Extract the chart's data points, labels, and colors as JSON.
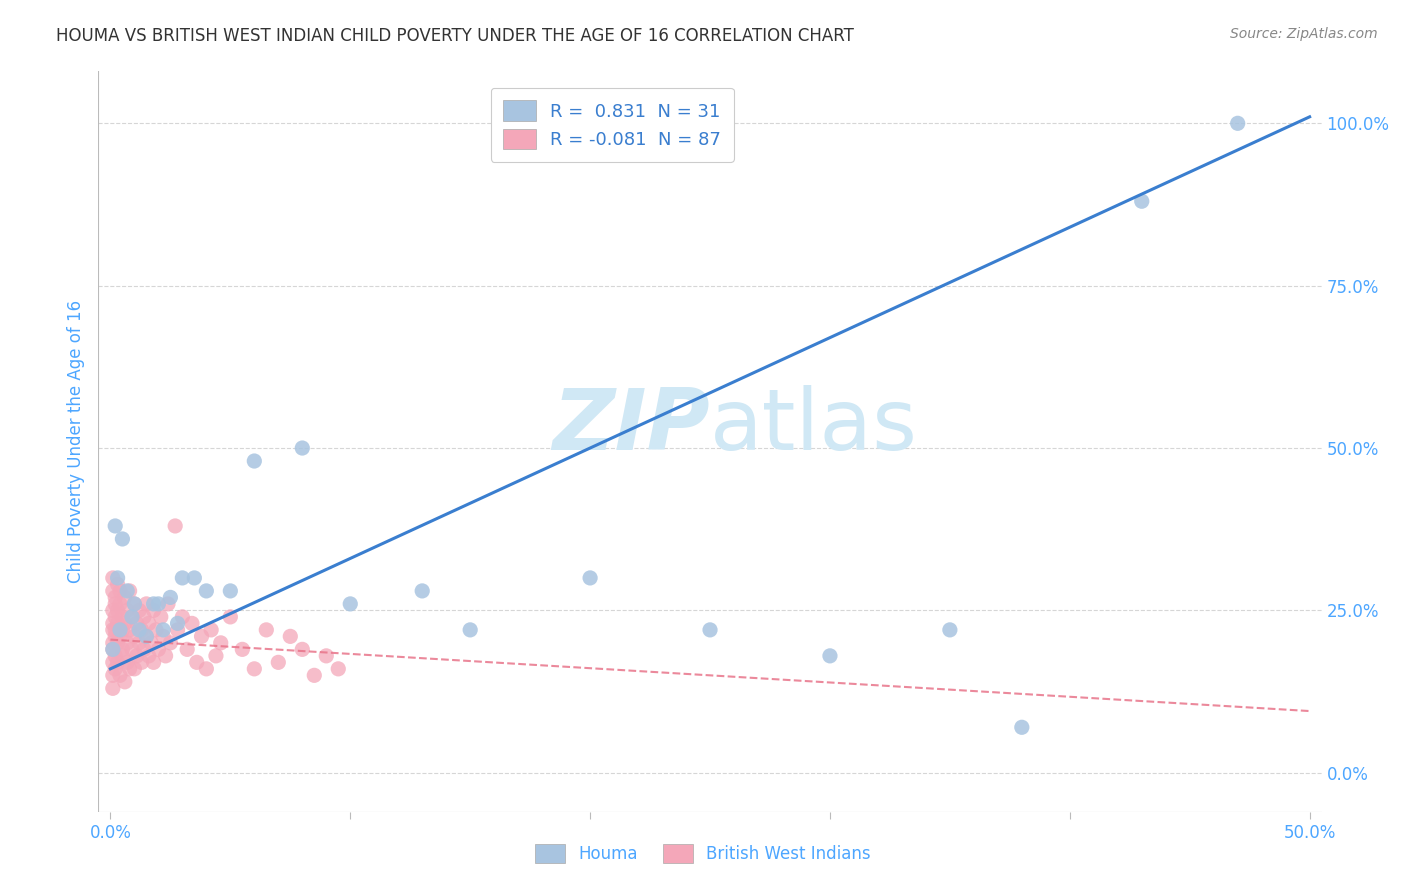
{
  "title": "HOUMA VS BRITISH WEST INDIAN CHILD POVERTY UNDER THE AGE OF 16 CORRELATION CHART",
  "source": "Source: ZipAtlas.com",
  "ylabel_label": "Child Poverty Under the Age of 16",
  "legend_houma": "Houma",
  "legend_bwi": "British West Indians",
  "houma_R": "0.831",
  "houma_N": "31",
  "bwi_R": "-0.081",
  "bwi_N": "87",
  "houma_color": "#a8c4e0",
  "bwi_color": "#f4a7b9",
  "houma_line_color": "#3a7ecf",
  "bwi_line_color": "#e8748a",
  "watermark_color": "#d0e8f5",
  "title_color": "#333333",
  "axis_label_color": "#4da6ff",
  "tick_color": "#4da6ff",
  "grid_color": "#cccccc",
  "houma_scatter_x": [
    0.001,
    0.002,
    0.003,
    0.004,
    0.005,
    0.007,
    0.009,
    0.01,
    0.012,
    0.015,
    0.018,
    0.02,
    0.022,
    0.025,
    0.028,
    0.03,
    0.035,
    0.04,
    0.05,
    0.06,
    0.08,
    0.1,
    0.13,
    0.15,
    0.2,
    0.25,
    0.3,
    0.35,
    0.38,
    0.43,
    0.47
  ],
  "houma_scatter_y": [
    0.19,
    0.38,
    0.3,
    0.22,
    0.36,
    0.28,
    0.24,
    0.26,
    0.22,
    0.21,
    0.26,
    0.26,
    0.22,
    0.27,
    0.23,
    0.3,
    0.3,
    0.28,
    0.28,
    0.48,
    0.5,
    0.26,
    0.28,
    0.22,
    0.3,
    0.22,
    0.18,
    0.22,
    0.07,
    0.88,
    1.0
  ],
  "bwi_scatter_x": [
    0.001,
    0.001,
    0.001,
    0.001,
    0.001,
    0.001,
    0.001,
    0.001,
    0.001,
    0.001,
    0.002,
    0.002,
    0.002,
    0.002,
    0.002,
    0.002,
    0.002,
    0.003,
    0.003,
    0.003,
    0.003,
    0.003,
    0.004,
    0.004,
    0.004,
    0.004,
    0.005,
    0.005,
    0.005,
    0.005,
    0.006,
    0.006,
    0.006,
    0.007,
    0.007,
    0.007,
    0.008,
    0.008,
    0.008,
    0.009,
    0.009,
    0.01,
    0.01,
    0.01,
    0.011,
    0.011,
    0.012,
    0.012,
    0.013,
    0.013,
    0.014,
    0.014,
    0.015,
    0.015,
    0.016,
    0.016,
    0.017,
    0.018,
    0.018,
    0.019,
    0.02,
    0.021,
    0.022,
    0.023,
    0.024,
    0.025,
    0.027,
    0.028,
    0.03,
    0.032,
    0.034,
    0.036,
    0.038,
    0.04,
    0.042,
    0.044,
    0.046,
    0.05,
    0.055,
    0.06,
    0.065,
    0.07,
    0.075,
    0.08,
    0.085,
    0.09,
    0.095
  ],
  "bwi_scatter_y": [
    0.22,
    0.19,
    0.25,
    0.17,
    0.28,
    0.15,
    0.23,
    0.2,
    0.3,
    0.13,
    0.26,
    0.18,
    0.24,
    0.21,
    0.27,
    0.16,
    0.22,
    0.29,
    0.17,
    0.25,
    0.2,
    0.23,
    0.28,
    0.15,
    0.21,
    0.26,
    0.19,
    0.24,
    0.22,
    0.18,
    0.27,
    0.14,
    0.23,
    0.2,
    0.25,
    0.17,
    0.22,
    0.28,
    0.16,
    0.24,
    0.19,
    0.26,
    0.21,
    0.16,
    0.23,
    0.18,
    0.25,
    0.2,
    0.22,
    0.17,
    0.24,
    0.19,
    0.21,
    0.26,
    0.18,
    0.23,
    0.2,
    0.25,
    0.17,
    0.22,
    0.19,
    0.24,
    0.21,
    0.18,
    0.26,
    0.2,
    0.38,
    0.22,
    0.24,
    0.19,
    0.23,
    0.17,
    0.21,
    0.16,
    0.22,
    0.18,
    0.2,
    0.24,
    0.19,
    0.16,
    0.22,
    0.17,
    0.21,
    0.19,
    0.15,
    0.18,
    0.16
  ],
  "houma_line_x0": 0.0,
  "houma_line_y0": 0.16,
  "houma_line_x1": 0.5,
  "houma_line_y1": 1.01,
  "bwi_line_x0": 0.0,
  "bwi_line_y0": 0.205,
  "bwi_line_x1": 0.5,
  "bwi_line_y1": 0.095,
  "xlim_min": -0.005,
  "xlim_max": 0.505,
  "ylim_min": -0.06,
  "ylim_max": 1.08
}
